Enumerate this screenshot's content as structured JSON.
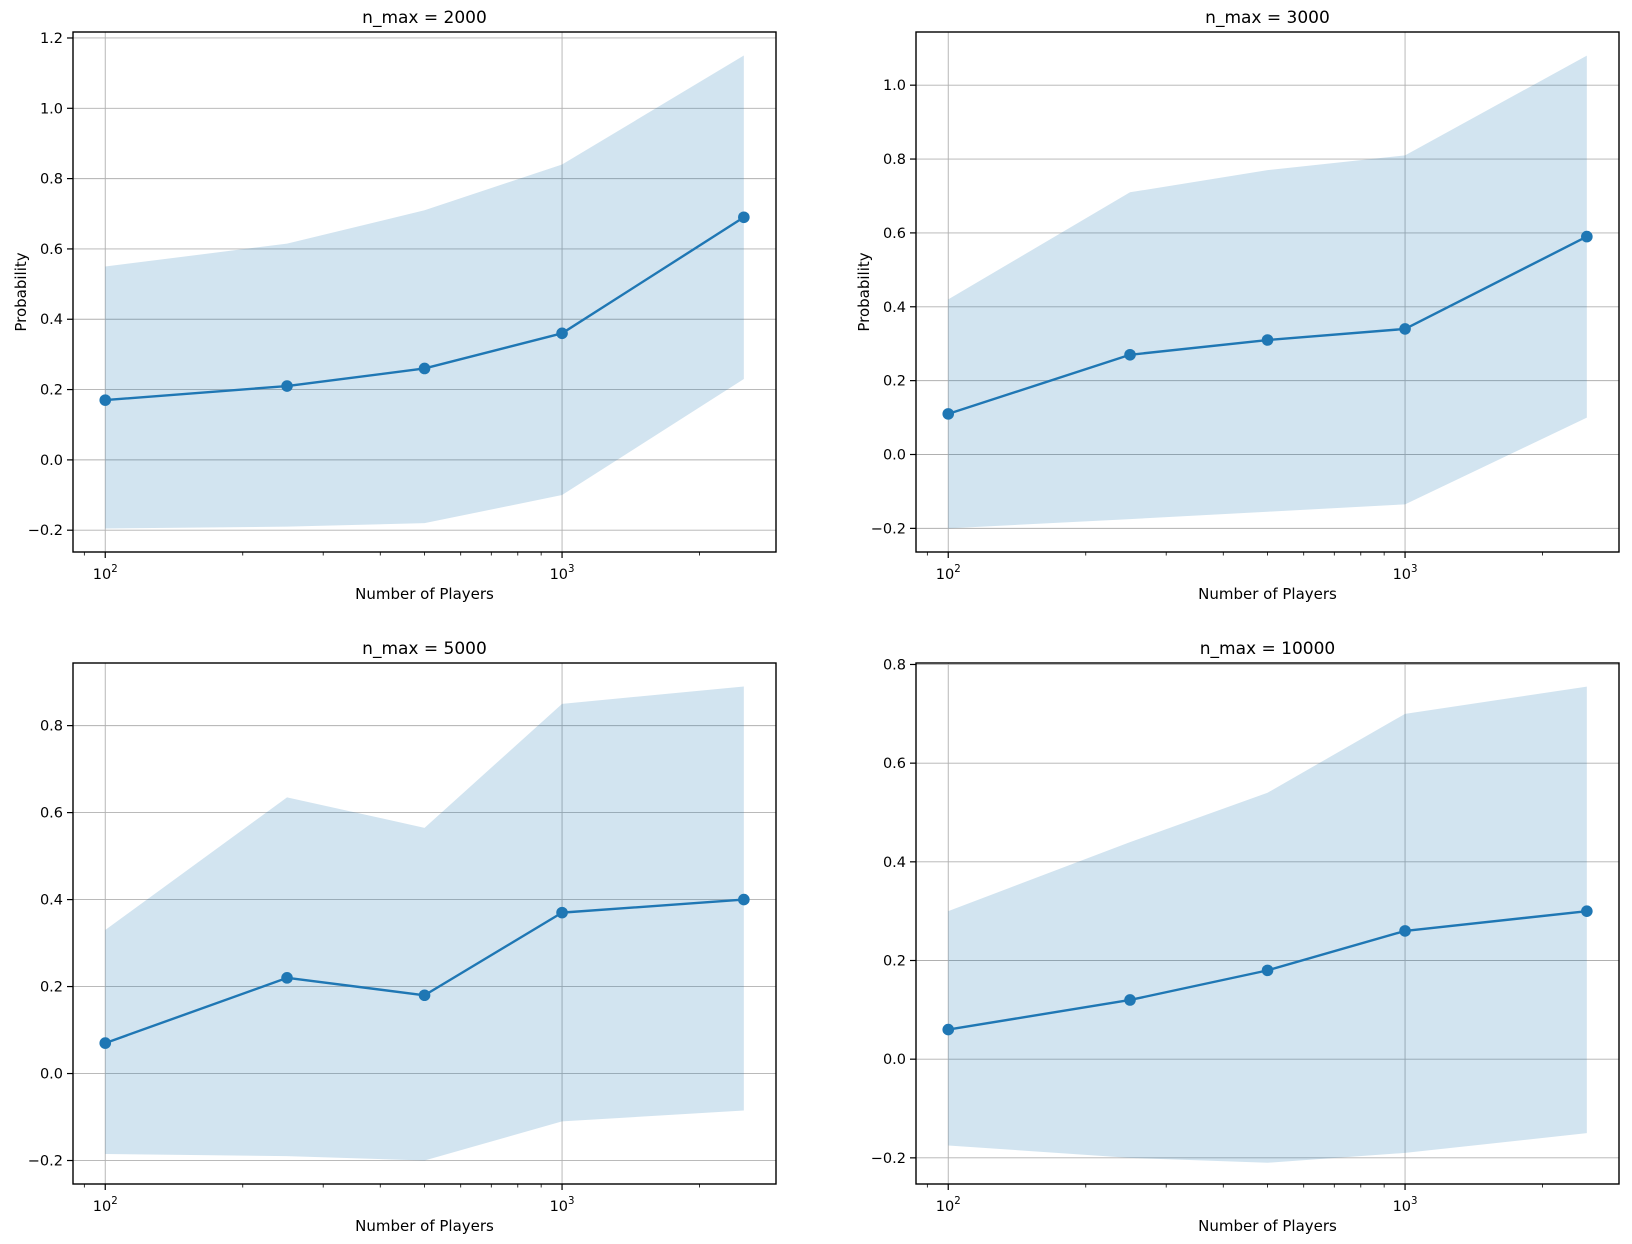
{
  "figure": {
    "background": "#ffffff",
    "line_color": "#1f77b4",
    "band_color": "#1f77b4",
    "band_opacity": 0.2,
    "grid_color": "#b0b0b0",
    "spine_color": "#000000",
    "text_color": "#000000"
  },
  "chart_data": [
    {
      "type": "line",
      "title": "n_max = 2000",
      "xlabel": "Number of Players",
      "ylabel": "Probability",
      "xscale": "log",
      "grid": true,
      "legend_position": "none",
      "x": [
        100,
        250,
        500,
        1000,
        2500
      ],
      "series": [
        {
          "name": "mean probability",
          "values": [
            0.17,
            0.21,
            0.26,
            0.36,
            0.69
          ]
        },
        {
          "name": "band upper",
          "values": [
            0.55,
            0.615,
            0.71,
            0.84,
            1.15
          ]
        },
        {
          "name": "band lower",
          "values": [
            -0.195,
            -0.19,
            -0.18,
            -0.1,
            0.23
          ]
        }
      ],
      "xlim": [
        85,
        2940
      ],
      "ylim": [
        -0.262,
        1.217
      ],
      "yticks": [
        -0.2,
        0.0,
        0.2,
        0.4,
        0.6,
        0.8,
        1.0,
        1.2
      ],
      "ytick_labels": [
        "−0.2",
        "0.0",
        "0.2",
        "0.4",
        "0.6",
        "0.8",
        "1.0",
        "1.2"
      ],
      "xticks": [
        100,
        1000
      ],
      "xtick_labels": [
        {
          "base": "10",
          "exp": "2"
        },
        {
          "base": "10",
          "exp": "3"
        }
      ],
      "xminorticks": [
        90,
        200,
        300,
        400,
        500,
        600,
        700,
        800,
        900,
        2000
      ]
    },
    {
      "type": "line",
      "title": "n_max = 3000",
      "xlabel": "Number of Players",
      "ylabel": "Probability",
      "xscale": "log",
      "grid": true,
      "legend_position": "none",
      "x": [
        100,
        250,
        500,
        1000,
        2500
      ],
      "series": [
        {
          "name": "mean probability",
          "values": [
            0.11,
            0.27,
            0.31,
            0.34,
            0.59
          ]
        },
        {
          "name": "band upper",
          "values": [
            0.42,
            0.71,
            0.77,
            0.81,
            1.08
          ]
        },
        {
          "name": "band lower",
          "values": [
            -0.2,
            -0.175,
            -0.155,
            -0.135,
            0.1
          ]
        }
      ],
      "xlim": [
        85,
        2940
      ],
      "ylim": [
        -0.264,
        1.144
      ],
      "yticks": [
        -0.2,
        0.0,
        0.2,
        0.4,
        0.6,
        0.8,
        1.0
      ],
      "ytick_labels": [
        "−0.2",
        "0.0",
        "0.2",
        "0.4",
        "0.6",
        "0.8",
        "1.0"
      ],
      "xticks": [
        100,
        1000
      ],
      "xtick_labels": [
        {
          "base": "10",
          "exp": "2"
        },
        {
          "base": "10",
          "exp": "3"
        }
      ],
      "xminorticks": [
        90,
        200,
        300,
        400,
        500,
        600,
        700,
        800,
        900,
        2000
      ]
    },
    {
      "type": "line",
      "title": "n_max = 5000",
      "xlabel": "Number of Players",
      "ylabel": "",
      "xscale": "log",
      "grid": true,
      "legend_position": "none",
      "x": [
        100,
        250,
        500,
        1000,
        2500
      ],
      "series": [
        {
          "name": "mean probability",
          "values": [
            0.07,
            0.22,
            0.18,
            0.37,
            0.4
          ]
        },
        {
          "name": "band upper",
          "values": [
            0.33,
            0.635,
            0.565,
            0.85,
            0.89
          ]
        },
        {
          "name": "band lower",
          "values": [
            -0.185,
            -0.19,
            -0.2,
            -0.11,
            -0.085
          ]
        }
      ],
      "xlim": [
        85,
        2940
      ],
      "ylim": [
        -0.254,
        0.944
      ],
      "yticks": [
        -0.2,
        0.0,
        0.2,
        0.4,
        0.6,
        0.8
      ],
      "ytick_labels": [
        "−0.2",
        "0.0",
        "0.2",
        "0.4",
        "0.6",
        "0.8"
      ],
      "xticks": [
        100,
        1000
      ],
      "xtick_labels": [
        {
          "base": "10",
          "exp": "2"
        },
        {
          "base": "10",
          "exp": "3"
        }
      ],
      "xminorticks": [
        90,
        200,
        300,
        400,
        500,
        600,
        700,
        800,
        900,
        2000
      ]
    },
    {
      "type": "line",
      "title": "n_max = 10000",
      "xlabel": "Number of Players",
      "ylabel": "",
      "xscale": "log",
      "grid": true,
      "legend_position": "none",
      "x": [
        100,
        250,
        500,
        1000,
        2500
      ],
      "series": [
        {
          "name": "mean probability",
          "values": [
            0.06,
            0.12,
            0.18,
            0.26,
            0.3
          ]
        },
        {
          "name": "band upper",
          "values": [
            0.3,
            0.44,
            0.54,
            0.7,
            0.755
          ]
        },
        {
          "name": "band lower",
          "values": [
            -0.175,
            -0.2,
            -0.21,
            -0.19,
            -0.15
          ]
        }
      ],
      "xlim": [
        85,
        2940
      ],
      "ylim": [
        -0.253,
        0.803
      ],
      "yticks": [
        -0.2,
        0.0,
        0.2,
        0.4,
        0.6,
        0.8
      ],
      "ytick_labels": [
        "−0.2",
        "0.0",
        "0.2",
        "0.4",
        "0.6",
        "0.8"
      ],
      "xticks": [
        100,
        1000
      ],
      "xtick_labels": [
        {
          "base": "10",
          "exp": "2"
        },
        {
          "base": "10",
          "exp": "3"
        }
      ],
      "xminorticks": [
        90,
        200,
        300,
        400,
        500,
        600,
        700,
        800,
        900,
        2000
      ]
    }
  ]
}
